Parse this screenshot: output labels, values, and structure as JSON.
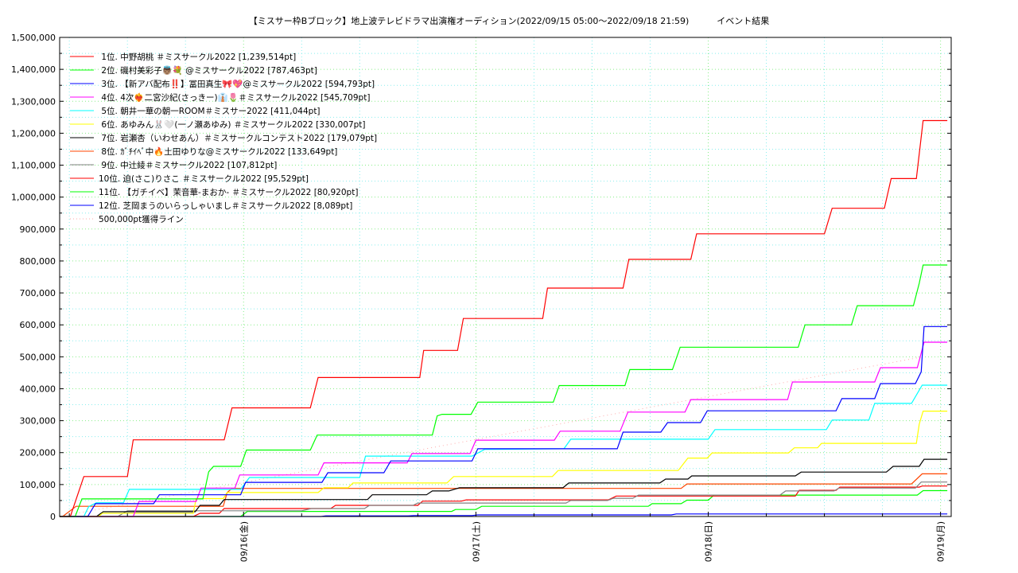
{
  "chart_data": {
    "type": "line",
    "title": "【ミスサー枠Bブロック】地上波テレビドラマ出演権オーディション(2022/09/15 05:00〜2022/09/18 21:59)",
    "subtitle": "イベント結果",
    "x_unit": "hours since 2022/09/15 05:00",
    "xlim": [
      0,
      92.1
    ],
    "ylim": [
      0,
      1500000
    ],
    "grid": true,
    "legend_position": "top-left",
    "x_ticks": [
      {
        "x": 19,
        "label": "09/16(金)"
      },
      {
        "x": 43,
        "label": "09/17(土)"
      },
      {
        "x": 67,
        "label": "09/18(日)"
      },
      {
        "x": 91,
        "label": "09/19(月)"
      }
    ],
    "y_ticks": [
      "0",
      "100,000",
      "200,000",
      "300,000",
      "400,000",
      "500,000",
      "600,000",
      "700,000",
      "800,000",
      "900,000",
      "1,000,000",
      "1,100,000",
      "1,200,000",
      "1,300,000",
      "1,400,000",
      "1,500,000"
    ],
    "series": [
      {
        "name": " 1位. 中野胡桃 ＃ミスサークル2022 [1,239,514pt]",
        "color": "#ff0000",
        "points": [
          [
            0,
            0
          ],
          [
            1.1,
            0
          ],
          [
            2.5,
            125000
          ],
          [
            7.0,
            125000
          ],
          [
            7.6,
            240000
          ],
          [
            17.0,
            240000
          ],
          [
            17.8,
            340000
          ],
          [
            25.9,
            340000
          ],
          [
            26.7,
            435000
          ],
          [
            37.2,
            435000
          ],
          [
            37.6,
            520000
          ],
          [
            41.1,
            520000
          ],
          [
            41.7,
            620000
          ],
          [
            49.9,
            620000
          ],
          [
            50.4,
            715000
          ],
          [
            58.2,
            715000
          ],
          [
            58.8,
            805000
          ],
          [
            65.2,
            805000
          ],
          [
            65.8,
            885000
          ],
          [
            79.0,
            885000
          ],
          [
            79.8,
            965000
          ],
          [
            85.2,
            965000
          ],
          [
            85.9,
            1058000
          ],
          [
            88.5,
            1058000
          ],
          [
            89.2,
            1239514
          ],
          [
            91.7,
            1239514
          ]
        ]
      },
      {
        "name": " 2位. 磯村美彩子👼🏽💐 @ミスサークル2022 [787,463pt]",
        "color": "#00ff00",
        "points": [
          [
            0,
            0
          ],
          [
            1.6,
            0
          ],
          [
            2.3,
            55000
          ],
          [
            14.8,
            55000
          ],
          [
            15.4,
            140000
          ],
          [
            15.9,
            157000
          ],
          [
            18.7,
            157000
          ],
          [
            19.3,
            208000
          ],
          [
            25.9,
            208000
          ],
          [
            26.6,
            255000
          ],
          [
            38.5,
            255000
          ],
          [
            39.0,
            315000
          ],
          [
            39.5,
            320000
          ],
          [
            42.5,
            320000
          ],
          [
            43.2,
            358000
          ],
          [
            51.0,
            358000
          ],
          [
            51.6,
            410000
          ],
          [
            58.4,
            410000
          ],
          [
            58.9,
            460000
          ],
          [
            63.3,
            460000
          ],
          [
            64.1,
            530000
          ],
          [
            76.3,
            530000
          ],
          [
            77.0,
            600000
          ],
          [
            81.8,
            600000
          ],
          [
            82.4,
            660000
          ],
          [
            88.2,
            660000
          ],
          [
            88.8,
            730000
          ],
          [
            89.2,
            787463
          ],
          [
            91.7,
            787463
          ]
        ]
      },
      {
        "name": " 3位. 【新アバ配布‼️】冨田真生🎀💖@ミスサークル2022 [594,793pt]",
        "color": "#0000ff",
        "points": [
          [
            0,
            0
          ],
          [
            2.9,
            0
          ],
          [
            3.7,
            40000
          ],
          [
            9.7,
            40000
          ],
          [
            10.3,
            68000
          ],
          [
            18.7,
            68000
          ],
          [
            19.2,
            107000
          ],
          [
            27.1,
            107000
          ],
          [
            27.7,
            137000
          ],
          [
            33.5,
            137000
          ],
          [
            34.2,
            174000
          ],
          [
            42.6,
            174000
          ],
          [
            43.2,
            212000
          ],
          [
            57.6,
            212000
          ],
          [
            58.2,
            264000
          ],
          [
            62.1,
            264000
          ],
          [
            62.8,
            294000
          ],
          [
            66.2,
            294000
          ],
          [
            66.9,
            331000
          ],
          [
            80.2,
            331000
          ],
          [
            80.8,
            369000
          ],
          [
            84.2,
            369000
          ],
          [
            84.8,
            416000
          ],
          [
            88.4,
            416000
          ],
          [
            89.0,
            453000
          ],
          [
            89.3,
            594793
          ],
          [
            91.7,
            594793
          ]
        ]
      },
      {
        "name": " 4位. 4次❤️‍🔥二宮沙紀(さっきー)👔🌷＃ミスサークル2022 [545,709pt]",
        "color": "#ff00ff",
        "points": [
          [
            0,
            0
          ],
          [
            7.6,
            0
          ],
          [
            8.2,
            47000
          ],
          [
            14.1,
            47000
          ],
          [
            14.6,
            89000
          ],
          [
            18.1,
            89000
          ],
          [
            18.6,
            130000
          ],
          [
            26.7,
            130000
          ],
          [
            27.3,
            168000
          ],
          [
            35.9,
            168000
          ],
          [
            36.4,
            197000
          ],
          [
            42.4,
            197000
          ],
          [
            43.0,
            239000
          ],
          [
            51.1,
            239000
          ],
          [
            51.7,
            267000
          ],
          [
            57.9,
            267000
          ],
          [
            58.7,
            327000
          ],
          [
            64.6,
            327000
          ],
          [
            65.2,
            366000
          ],
          [
            75.2,
            366000
          ],
          [
            75.7,
            421000
          ],
          [
            84.2,
            421000
          ],
          [
            84.8,
            466000
          ],
          [
            88.6,
            466000
          ],
          [
            89.3,
            545709
          ],
          [
            91.7,
            545709
          ]
        ]
      },
      {
        "name": " 5位. 朝井一華の朝一ROOM＃ミスサー2022 [411,044pt]",
        "color": "#00ffff",
        "points": [
          [
            0,
            0
          ],
          [
            2.5,
            0
          ],
          [
            3.0,
            31000
          ],
          [
            3.8,
            43000
          ],
          [
            6.6,
            43000
          ],
          [
            7.2,
            85000
          ],
          [
            18.7,
            85000
          ],
          [
            19.6,
            122000
          ],
          [
            31.0,
            122000
          ],
          [
            31.6,
            189000
          ],
          [
            42.6,
            189000
          ],
          [
            43.9,
            210000
          ],
          [
            52.1,
            212000
          ],
          [
            52.8,
            242000
          ],
          [
            67.0,
            242000
          ],
          [
            67.7,
            272000
          ],
          [
            79.2,
            272000
          ],
          [
            79.8,
            302000
          ],
          [
            83.6,
            302000
          ],
          [
            84.2,
            354000
          ],
          [
            88.0,
            354000
          ],
          [
            89.1,
            411044
          ],
          [
            91.7,
            411044
          ]
        ]
      },
      {
        "name": " 6位. あゆみん🐰🤍(一ノ瀬あゆみ) ＃ミスサークル2022 [330,007pt]",
        "color": "#ffff00",
        "points": [
          [
            0,
            0
          ],
          [
            4.0,
            0
          ],
          [
            4.4,
            10000
          ],
          [
            13.8,
            10000
          ],
          [
            14.1,
            56000
          ],
          [
            16.9,
            56000
          ],
          [
            17.3,
            75000
          ],
          [
            26.7,
            75000
          ],
          [
            27.3,
            90000
          ],
          [
            29.8,
            90000
          ],
          [
            30.3,
            105000
          ],
          [
            40.0,
            105000
          ],
          [
            40.7,
            125000
          ],
          [
            50.9,
            125000
          ],
          [
            51.5,
            144000
          ],
          [
            63.9,
            144000
          ],
          [
            64.9,
            183000
          ],
          [
            66.9,
            183000
          ],
          [
            67.4,
            199000
          ],
          [
            75.3,
            199000
          ],
          [
            75.9,
            215000
          ],
          [
            78.3,
            215000
          ],
          [
            78.7,
            229000
          ],
          [
            88.5,
            229000
          ],
          [
            88.8,
            289000
          ],
          [
            89.2,
            330007
          ],
          [
            91.7,
            330007
          ]
        ]
      },
      {
        "name": " 7位. 岩瀬杏（いわせあん）＃ミスサークルコンテスト2022 [179,079pt]",
        "color": "#000000",
        "points": [
          [
            0,
            0
          ],
          [
            3.8,
            0
          ],
          [
            4.5,
            15000
          ],
          [
            14.0,
            15000
          ],
          [
            14.5,
            35000
          ],
          [
            16.5,
            35000
          ],
          [
            17.0,
            53000
          ],
          [
            31.8,
            53000
          ],
          [
            32.3,
            68000
          ],
          [
            37.9,
            68000
          ],
          [
            38.5,
            80000
          ],
          [
            40.2,
            80000
          ],
          [
            41.3,
            90000
          ],
          [
            52.0,
            90000
          ],
          [
            52.6,
            105000
          ],
          [
            62.0,
            105000
          ],
          [
            62.6,
            117000
          ],
          [
            64.9,
            117000
          ],
          [
            65.3,
            127000
          ],
          [
            76.0,
            127000
          ],
          [
            76.6,
            139000
          ],
          [
            85.4,
            139000
          ],
          [
            86.1,
            157000
          ],
          [
            88.8,
            157000
          ],
          [
            89.3,
            179079
          ],
          [
            91.7,
            179079
          ]
        ]
      },
      {
        "name": " 8位. ｶﾞﾁｲﾍﾞ中🔥土田ゆりな@ミスサークル2022 [133,649pt]",
        "color": "#ff4500",
        "points": [
          [
            0,
            0
          ],
          [
            0.3,
            0
          ],
          [
            1.7,
            32000
          ],
          [
            16.9,
            32000
          ],
          [
            17.3,
            75000
          ],
          [
            17.8,
            88000
          ],
          [
            64.2,
            88000
          ],
          [
            64.8,
            102000
          ],
          [
            88.0,
            102000
          ],
          [
            89.1,
            133649
          ],
          [
            91.7,
            133649
          ]
        ]
      },
      {
        "name": " 9位. 中辻綾＃ミスサークル2022 [107,812pt]",
        "color": "#808080",
        "points": [
          [
            0,
            0
          ],
          [
            6.0,
            0
          ],
          [
            7.0,
            18000
          ],
          [
            25.0,
            18000
          ],
          [
            26.0,
            25000
          ],
          [
            31.5,
            25000
          ],
          [
            32.0,
            35000
          ],
          [
            36.5,
            35000
          ],
          [
            37.0,
            42000
          ],
          [
            52.3,
            42000
          ],
          [
            52.8,
            50000
          ],
          [
            56.6,
            50000
          ],
          [
            57.2,
            57000
          ],
          [
            59.2,
            57000
          ],
          [
            59.8,
            67000
          ],
          [
            74.4,
            67000
          ],
          [
            75.0,
            80000
          ],
          [
            80.0,
            80000
          ],
          [
            80.5,
            89000
          ],
          [
            88.4,
            89000
          ],
          [
            89.0,
            107812
          ],
          [
            91.7,
            107812
          ]
        ]
      },
      {
        "name": "10位. 迫(さこ)りさこ ＃ミスサークル2022 [95,529pt]",
        "color": "#ff0000",
        "points": [
          [
            0,
            0
          ],
          [
            13.8,
            0
          ],
          [
            14.5,
            10000
          ],
          [
            16.5,
            10000
          ],
          [
            17.0,
            25000
          ],
          [
            28.0,
            25000
          ],
          [
            28.5,
            35000
          ],
          [
            37.0,
            35000
          ],
          [
            37.5,
            48000
          ],
          [
            41.5,
            48000
          ],
          [
            42.0,
            52000
          ],
          [
            56.7,
            52000
          ],
          [
            57.5,
            64000
          ],
          [
            76.0,
            64000
          ],
          [
            76.4,
            82000
          ],
          [
            80.2,
            82000
          ],
          [
            80.6,
            92000
          ],
          [
            88.8,
            92000
          ],
          [
            89.1,
            95529
          ],
          [
            91.7,
            95529
          ]
        ]
      },
      {
        "name": "11位. 【ガチイベ】茉音華-まおか- ＃ミスサークル2022 [80,920pt]",
        "color": "#00ff00",
        "points": [
          [
            0,
            0
          ],
          [
            18.7,
            0
          ],
          [
            19.4,
            16000
          ],
          [
            40.5,
            16000
          ],
          [
            40.9,
            22000
          ],
          [
            43.0,
            22000
          ],
          [
            43.6,
            32000
          ],
          [
            60.8,
            32000
          ],
          [
            61.2,
            40000
          ],
          [
            64.2,
            40000
          ],
          [
            64.8,
            51000
          ],
          [
            67.0,
            51000
          ],
          [
            67.6,
            67000
          ],
          [
            88.6,
            67000
          ],
          [
            89.2,
            80920
          ],
          [
            91.7,
            80920
          ]
        ]
      },
      {
        "name": "12位. 芝岡まうのいらっしゃいまし＃ミスサークル2022 [8,089pt]",
        "color": "#0000ff",
        "points": [
          [
            0,
            0
          ],
          [
            27.0,
            0
          ],
          [
            27.5,
            2000
          ],
          [
            36.0,
            2000
          ],
          [
            36.6,
            3000
          ],
          [
            42.6,
            3000
          ],
          [
            43.2,
            5000
          ],
          [
            63.2,
            5000
          ],
          [
            63.7,
            8089
          ],
          [
            91.7,
            8089
          ]
        ]
      }
    ],
    "reference_line": {
      "name": "500,000pt獲得ライン",
      "color": "#ffaaaa",
      "points": [
        [
          0,
          0
        ],
        [
          89.2,
          500000
        ]
      ]
    }
  }
}
